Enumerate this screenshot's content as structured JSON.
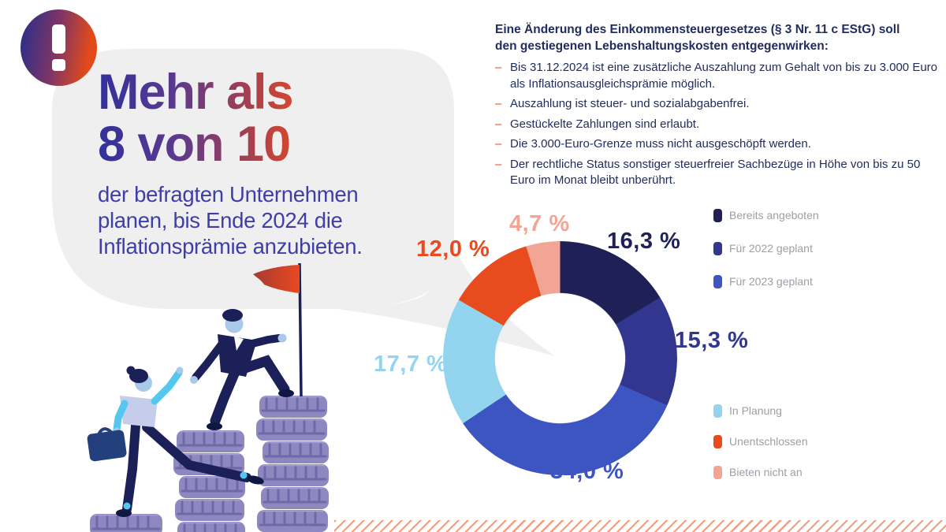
{
  "badge": {
    "icon": "exclamation-icon"
  },
  "headline": {
    "line1": "Mehr als",
    "line2": "8 von 10",
    "sublines": [
      "der befragten Unternehmen",
      "planen, bis Ende 2024 die",
      "Inflationsprämie anzubieten."
    ]
  },
  "info_panel": {
    "heading_lines": [
      "Eine Änderung des Einkommensteuergesetzes (§ 3 Nr. 11 c EStG) soll",
      "den gestiegenen Lebenshaltungskosten entgegenwirken:"
    ],
    "bullet_marker": "–",
    "bullets": [
      "Bis 31.12.2024 ist eine zusätzliche Auszahlung zum Gehalt von bis zu 3.000 Euro als Inflationsausgleichsprämie möglich.",
      "Auszahlung ist steuer- und sozialabgabenfrei.",
      "Gestückelte Zahlungen sind erlaubt.",
      "Die 3.000-Euro-Grenze muss nicht ausgeschöpft werden.",
      "Der rechtliche Status sonstiger steuerfreier Sachbezüge in Höhe von bis zu 50 Euro im Monat bleibt unberührt."
    ]
  },
  "chart_data": {
    "type": "pie",
    "subtype": "donut",
    "start_angle_deg": 0,
    "direction": "clockwise",
    "hole_ratio": 0.56,
    "legend_position": "right",
    "slices": [
      {
        "label": "Bereits angeboten",
        "value": 16.3,
        "value_label": "16,3 %",
        "color": "#1f2156"
      },
      {
        "label": "Für 2022 geplant",
        "value": 15.3,
        "value_label": "15,3 %",
        "color": "#32368f"
      },
      {
        "label": "Für 2023 geplant",
        "value": 34.0,
        "value_label": "34,0 %",
        "color": "#3d55c1"
      },
      {
        "label": "In Planung",
        "value": 17.7,
        "value_label": "17,7 %",
        "color": "#93d4ee"
      },
      {
        "label": "Unentschlossen",
        "value": 12.0,
        "value_label": "12,0 %",
        "color": "#e84b1d"
      },
      {
        "label": "Bieten nicht an",
        "value": 4.7,
        "value_label": "4,7 %",
        "color": "#f2a595"
      }
    ]
  },
  "illustration": {
    "name": "two-people-climbing-coin-stacks-with-flag"
  },
  "colors": {
    "bubble": "#efefef",
    "accent_orange": "#e8491f",
    "subtext": "#3e3ea8",
    "info_text": "#222c5e",
    "legend_text": "#9aa0a6",
    "grad_start": "#31319b",
    "grad_mid1": "#5c3a8e",
    "grad_mid2": "#a03f53",
    "grad_end": "#e8491f",
    "hatch": "#f09d82",
    "badge_blue": "#333084",
    "badge_mid": "#7c3468",
    "badge_red": "#e24a1b",
    "coin": "#8d88bf",
    "coin_ridge": "#6f69a9",
    "coin_top": "#a6a1d1",
    "suit": "#1b2158",
    "skin": "#a9c9e8",
    "shirt": "#c6cdeb",
    "sleeve": "#53c7ee",
    "briefcase": "#24407c",
    "shoe": "#101742",
    "flag_left": "#a83a33",
    "flag_right": "#e8491f",
    "pole": "#1b2158"
  }
}
